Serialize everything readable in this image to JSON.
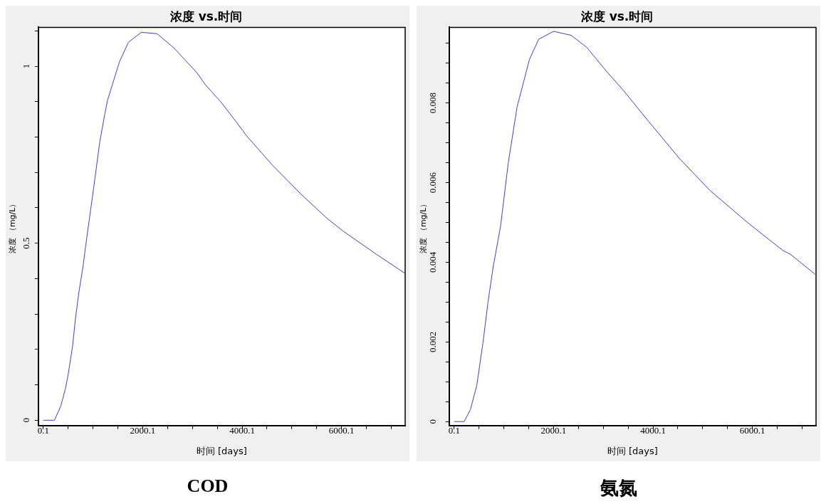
{
  "chart_data": [
    {
      "type": "line",
      "title": "浓度 vs.时间",
      "xlabel": "时间 [days]",
      "ylabel": "浓度 （mg/L）",
      "annotations": [
        "COD"
      ],
      "grid": false,
      "xlim": [
        -100,
        7280
      ],
      "ylim": [
        -0.015,
        1.11
      ],
      "xticks": [
        0.1,
        {
          "value": 500.1,
          "label": null
        },
        {
          "value": 1000.1,
          "label": null
        },
        {
          "value": 1500.1,
          "label": null
        },
        2000.1,
        {
          "value": 2500.1,
          "label": null
        },
        {
          "value": 3000.1,
          "label": null
        },
        {
          "value": 3500.1,
          "label": null
        },
        4000.1,
        {
          "value": 4500.1,
          "label": null
        },
        {
          "value": 5000.1,
          "label": null
        },
        {
          "value": 5500.1,
          "label": null
        },
        6000.1,
        {
          "value": 6500.1,
          "label": null
        },
        {
          "value": 7000.1,
          "label": null
        }
      ],
      "yticks": [
        0,
        {
          "value": 0.1,
          "label": null
        },
        {
          "value": 0.2,
          "label": null
        },
        {
          "value": 0.3,
          "label": null
        },
        {
          "value": 0.4,
          "label": null
        },
        0.5,
        {
          "value": 0.6,
          "label": null
        },
        {
          "value": 0.7,
          "label": null
        },
        {
          "value": 0.8,
          "label": null
        },
        {
          "value": 0.9,
          "label": null
        },
        1,
        {
          "value": 1.1,
          "label": null
        }
      ],
      "series": [
        {
          "color": "#4040d0",
          "x": [
            0.1,
            225,
            351,
            443,
            492,
            590,
            646,
            716,
            800,
            850,
            1011,
            1138,
            1236,
            1292,
            1531,
            1713,
            1973,
            2289,
            2626,
            2837,
            3090,
            3259,
            3568,
            3876,
            4087,
            4607,
            5183,
            5702,
            6025,
            6699,
            7275
          ],
          "values": [
            0,
            0,
            0.04,
            0.088,
            0.122,
            0.21,
            0.286,
            0.361,
            0.435,
            0.49,
            0.654,
            0.788,
            0.864,
            0.904,
            1.012,
            1.068,
            1.096,
            1.092,
            1.052,
            1.02,
            0.982,
            0.948,
            0.9,
            0.844,
            0.804,
            0.721,
            0.639,
            0.571,
            0.535,
            0.469,
            0.415
          ]
        }
      ]
    },
    {
      "type": "line",
      "title": "浓度 vs.时间",
      "xlabel": "时间 [days]",
      "ylabel": "浓度 （mg/L）",
      "annotations": [
        "氨氮"
      ],
      "grid": false,
      "xlim": [
        -100,
        7280
      ],
      "ylim": [
        -0.0001,
        0.0099
      ],
      "xticks": [
        0.1,
        {
          "value": 500.1,
          "label": null
        },
        {
          "value": 1000.1,
          "label": null
        },
        {
          "value": 1500.1,
          "label": null
        },
        2000.1,
        {
          "value": 2500.1,
          "label": null
        },
        {
          "value": 3000.1,
          "label": null
        },
        {
          "value": 3500.1,
          "label": null
        },
        4000.1,
        {
          "value": 4500.1,
          "label": null
        },
        {
          "value": 5000.1,
          "label": null
        },
        {
          "value": 5500.1,
          "label": null
        },
        6000.1,
        {
          "value": 6500.1,
          "label": null
        },
        {
          "value": 7000.1,
          "label": null
        }
      ],
      "yticks": [
        0,
        {
          "value": 0.0005,
          "label": null
        },
        {
          "value": 0.001,
          "label": null
        },
        {
          "value": 0.0015,
          "label": null
        },
        0.002,
        {
          "value": 0.0025,
          "label": null
        },
        {
          "value": 0.003,
          "label": null
        },
        {
          "value": 0.0035,
          "label": null
        },
        0.004,
        {
          "value": 0.0045,
          "label": null
        },
        {
          "value": 0.005,
          "label": null
        },
        {
          "value": 0.0055,
          "label": null
        },
        0.006,
        {
          "value": 0.0065,
          "label": null
        },
        {
          "value": 0.007,
          "label": null
        },
        {
          "value": 0.0075,
          "label": null
        },
        0.008,
        {
          "value": 0.0085,
          "label": null
        },
        {
          "value": 0.009,
          "label": null
        },
        {
          "value": 0.0095,
          "label": null
        }
      ],
      "series": [
        {
          "color": "#4040d0",
          "x": [
            0.1,
            202,
            327,
            454,
            582,
            681,
            787,
            933,
            1089,
            1266,
            1516,
            1700,
            2000,
            2352,
            2664,
            3061,
            3416,
            3870,
            4537,
            5149,
            5900,
            6610,
            6765,
            7262
          ],
          "values": [
            0,
            0,
            0.0003,
            0.0009,
            0.002,
            0.003,
            0.0039,
            0.0049,
            0.0065,
            0.0079,
            0.0091,
            0.0096,
            0.0098,
            0.0097,
            0.0094,
            0.0088,
            0.0083,
            0.0076,
            0.0066,
            0.0058,
            0.005,
            0.0043,
            0.0042,
            0.0037
          ]
        }
      ]
    }
  ]
}
